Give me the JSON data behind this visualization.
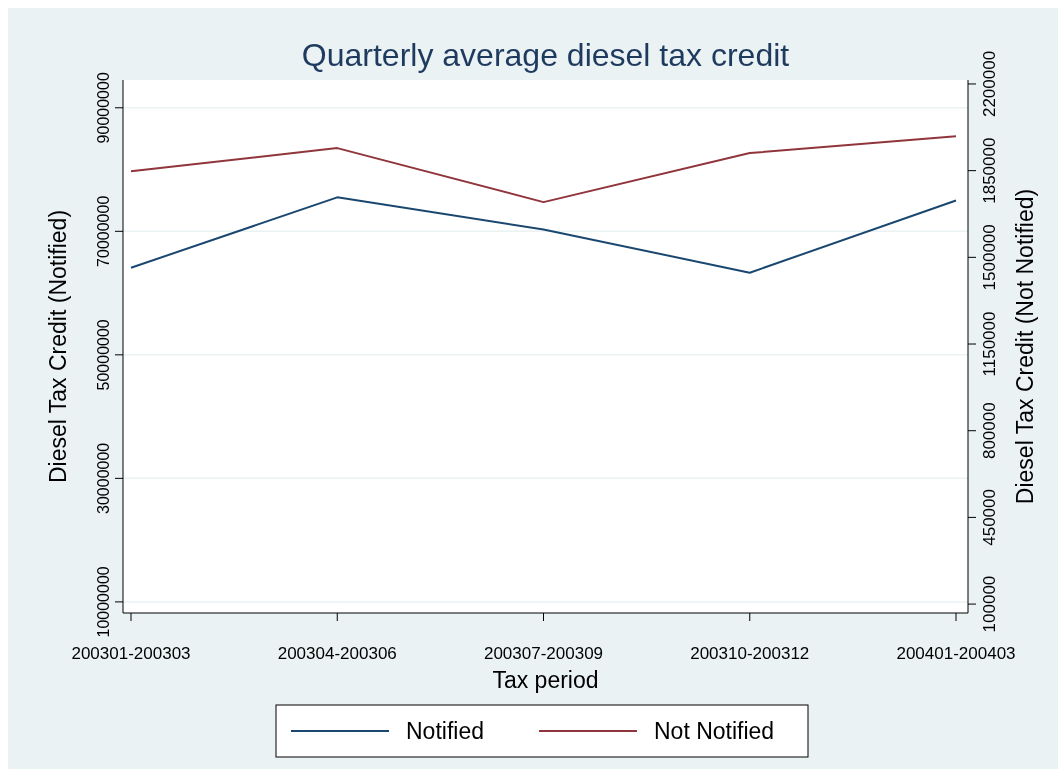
{
  "chart_data": {
    "type": "line",
    "title": "Quarterly average diesel tax credit",
    "xlabel": "Tax period",
    "ylabel": "Diesel Tax Credit (Notified)",
    "y2label": "Diesel Tax Credit (Not Notified)",
    "categories": [
      "200301-200303",
      "200304-200306",
      "200307-200309",
      "200310-200312",
      "200401-200403"
    ],
    "series": [
      {
        "name": "Notified",
        "color": "#1a476f",
        "values": [
          64100000,
          75500000,
          70300000,
          63300000,
          75000000
        ]
      },
      {
        "name": "Not Notified",
        "color": "#90353b",
        "axis": "y2",
        "values": [
          1848000,
          1941000,
          1723000,
          1921000,
          1989000
        ]
      }
    ],
    "ylim": [
      8200000,
      94500000
    ],
    "yticks": [
      10000000,
      30000000,
      50000000,
      70000000,
      90000000
    ],
    "y2lim": [
      64000,
      2216000
    ],
    "y2ticks": [
      100000,
      450000,
      800000,
      1150000,
      1500000,
      1850000,
      2200000
    ],
    "grid": "y",
    "legend": "bottom",
    "line_style": "solid"
  }
}
